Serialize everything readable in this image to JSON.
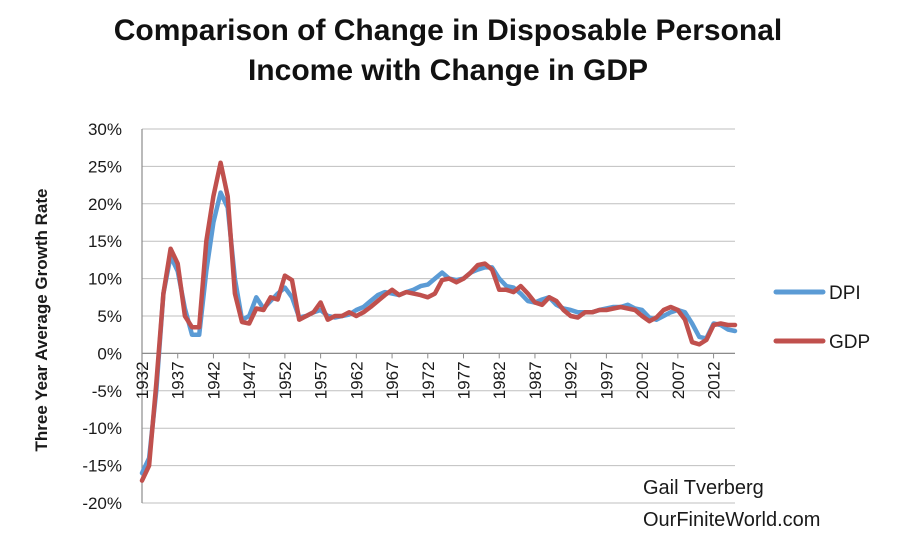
{
  "chart_data": {
    "type": "line",
    "title_lines": [
      "Comparison of Change in Disposable Personal",
      "Income with Change in GDP"
    ],
    "ylabel": "Three Year Average Growth Rate",
    "xlabel": "",
    "ylim": [
      -0.2,
      0.3
    ],
    "yticks": [
      0.3,
      0.25,
      0.2,
      0.15,
      0.1,
      0.05,
      0.0,
      -0.05,
      -0.1,
      -0.15,
      -0.2
    ],
    "ytick_labels": [
      "30%",
      "25%",
      "20%",
      "15%",
      "10%",
      "5%",
      "0%",
      "-5%",
      "-10%",
      "-15%",
      "-20%"
    ],
    "xlim": [
      1932,
      2015
    ],
    "xtick_labels": [
      "1932",
      "1937",
      "1942",
      "1947",
      "1952",
      "1957",
      "1962",
      "1967",
      "1972",
      "1977",
      "1982",
      "1987",
      "1992",
      "1997",
      "2002",
      "2007",
      "2012"
    ],
    "grid": "horizontal",
    "legend_position": "right",
    "x": [
      1932,
      1933,
      1934,
      1935,
      1936,
      1937,
      1938,
      1939,
      1940,
      1941,
      1942,
      1943,
      1944,
      1945,
      1946,
      1947,
      1948,
      1949,
      1950,
      1951,
      1952,
      1953,
      1954,
      1955,
      1956,
      1957,
      1958,
      1959,
      1960,
      1961,
      1962,
      1963,
      1964,
      1965,
      1966,
      1967,
      1968,
      1969,
      1970,
      1971,
      1972,
      1973,
      1974,
      1975,
      1976,
      1977,
      1978,
      1979,
      1980,
      1981,
      1982,
      1983,
      1984,
      1985,
      1986,
      1987,
      1988,
      1989,
      1990,
      1991,
      1992,
      1993,
      1994,
      1995,
      1996,
      1997,
      1998,
      1999,
      2000,
      2001,
      2002,
      2003,
      2004,
      2005,
      2006,
      2007,
      2008,
      2009,
      2010,
      2011,
      2012,
      2013,
      2014,
      2015
    ],
    "series": [
      {
        "name": "DPI",
        "color": "#5b9bd5",
        "values": [
          -0.16,
          -0.14,
          -0.05,
          0.08,
          0.13,
          0.11,
          0.06,
          0.025,
          0.025,
          0.11,
          0.175,
          0.215,
          0.195,
          0.1,
          0.045,
          0.05,
          0.075,
          0.06,
          0.07,
          0.08,
          0.088,
          0.075,
          0.048,
          0.05,
          0.055,
          0.058,
          0.05,
          0.048,
          0.05,
          0.052,
          0.058,
          0.062,
          0.07,
          0.078,
          0.082,
          0.08,
          0.078,
          0.082,
          0.085,
          0.09,
          0.092,
          0.1,
          0.108,
          0.1,
          0.098,
          0.1,
          0.108,
          0.112,
          0.115,
          0.115,
          0.1,
          0.09,
          0.088,
          0.08,
          0.07,
          0.068,
          0.072,
          0.075,
          0.065,
          0.06,
          0.058,
          0.055,
          0.055,
          0.055,
          0.058,
          0.06,
          0.062,
          0.062,
          0.065,
          0.06,
          0.058,
          0.048,
          0.045,
          0.05,
          0.055,
          0.058,
          0.055,
          0.04,
          0.022,
          0.02,
          0.04,
          0.038,
          0.032,
          0.03
        ]
      },
      {
        "name": "GDP",
        "color": "#c0504d",
        "values": [
          -0.17,
          -0.15,
          -0.04,
          0.08,
          0.14,
          0.12,
          0.05,
          0.035,
          0.035,
          0.15,
          0.21,
          0.255,
          0.21,
          0.08,
          0.042,
          0.04,
          0.06,
          0.058,
          0.075,
          0.072,
          0.104,
          0.098,
          0.045,
          0.05,
          0.055,
          0.068,
          0.045,
          0.05,
          0.05,
          0.055,
          0.05,
          0.055,
          0.062,
          0.07,
          0.078,
          0.085,
          0.078,
          0.082,
          0.08,
          0.078,
          0.075,
          0.08,
          0.098,
          0.1,
          0.095,
          0.1,
          0.108,
          0.118,
          0.12,
          0.112,
          0.085,
          0.085,
          0.082,
          0.09,
          0.08,
          0.068,
          0.065,
          0.075,
          0.07,
          0.058,
          0.05,
          0.048,
          0.055,
          0.055,
          0.058,
          0.058,
          0.06,
          0.062,
          0.06,
          0.058,
          0.05,
          0.043,
          0.048,
          0.058,
          0.062,
          0.058,
          0.045,
          0.015,
          0.012,
          0.018,
          0.038,
          0.04,
          0.038,
          0.038
        ]
      }
    ]
  },
  "credit": {
    "author": "Gail Tverberg",
    "site": "OurFiniteWorld.com"
  }
}
